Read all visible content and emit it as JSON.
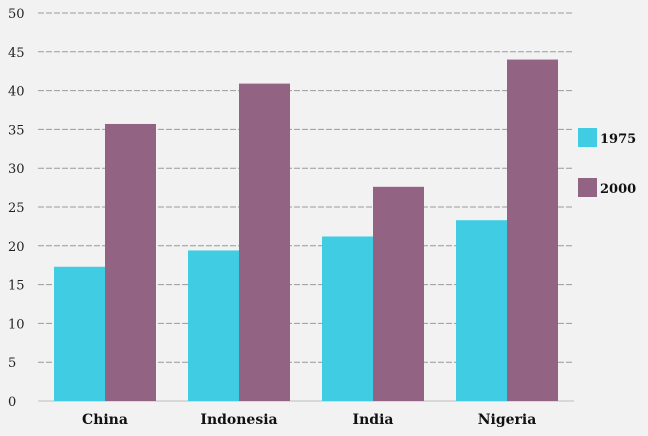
{
  "chart_data": {
    "type": "bar",
    "title": "",
    "xlabel": "",
    "ylabel": "",
    "categories": [
      "China",
      "Indonesia",
      "India",
      "Nigeria"
    ],
    "series": [
      {
        "name": "1975",
        "color": "#40cde4",
        "values": [
          17.3,
          19.4,
          21.2,
          23.3
        ]
      },
      {
        "name": "2000",
        "color": "#936383",
        "values": [
          35.7,
          40.9,
          27.6,
          44.0
        ]
      }
    ],
    "ylim": [
      0,
      50
    ],
    "yticks": [
      "0",
      "5",
      "10",
      "15",
      "20",
      "25",
      "30",
      "35",
      "40",
      "45",
      "50"
    ],
    "grid": true,
    "grid_style": "dashed",
    "legend_position": "right"
  }
}
